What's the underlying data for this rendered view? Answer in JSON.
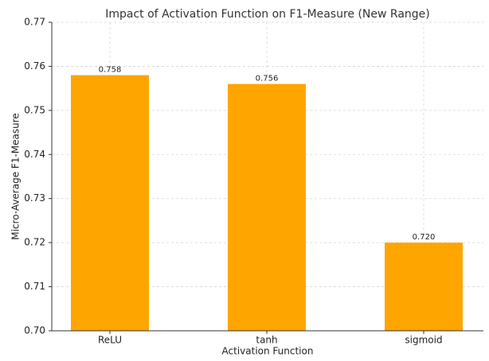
{
  "chart_data": {
    "type": "bar",
    "title": "Impact of Activation Function on F1-Measure (New Range)",
    "x_label": "Activation Function",
    "y_label": "Micro-Average F1-Measure",
    "categories": [
      "ReLU",
      "tanh",
      "sigmoid"
    ],
    "values": [
      0.758,
      0.756,
      0.72
    ],
    "value_labels": [
      "0.758",
      "0.756",
      "0.720"
    ],
    "color": "#ffa500",
    "ylim": [
      0.7,
      0.77
    ],
    "yticks": [
      {
        "value": 0.7,
        "label": "0.70"
      },
      0.71,
      0.72,
      0.73,
      0.74,
      0.75,
      0.76,
      0.77
    ],
    "grid": true
  }
}
